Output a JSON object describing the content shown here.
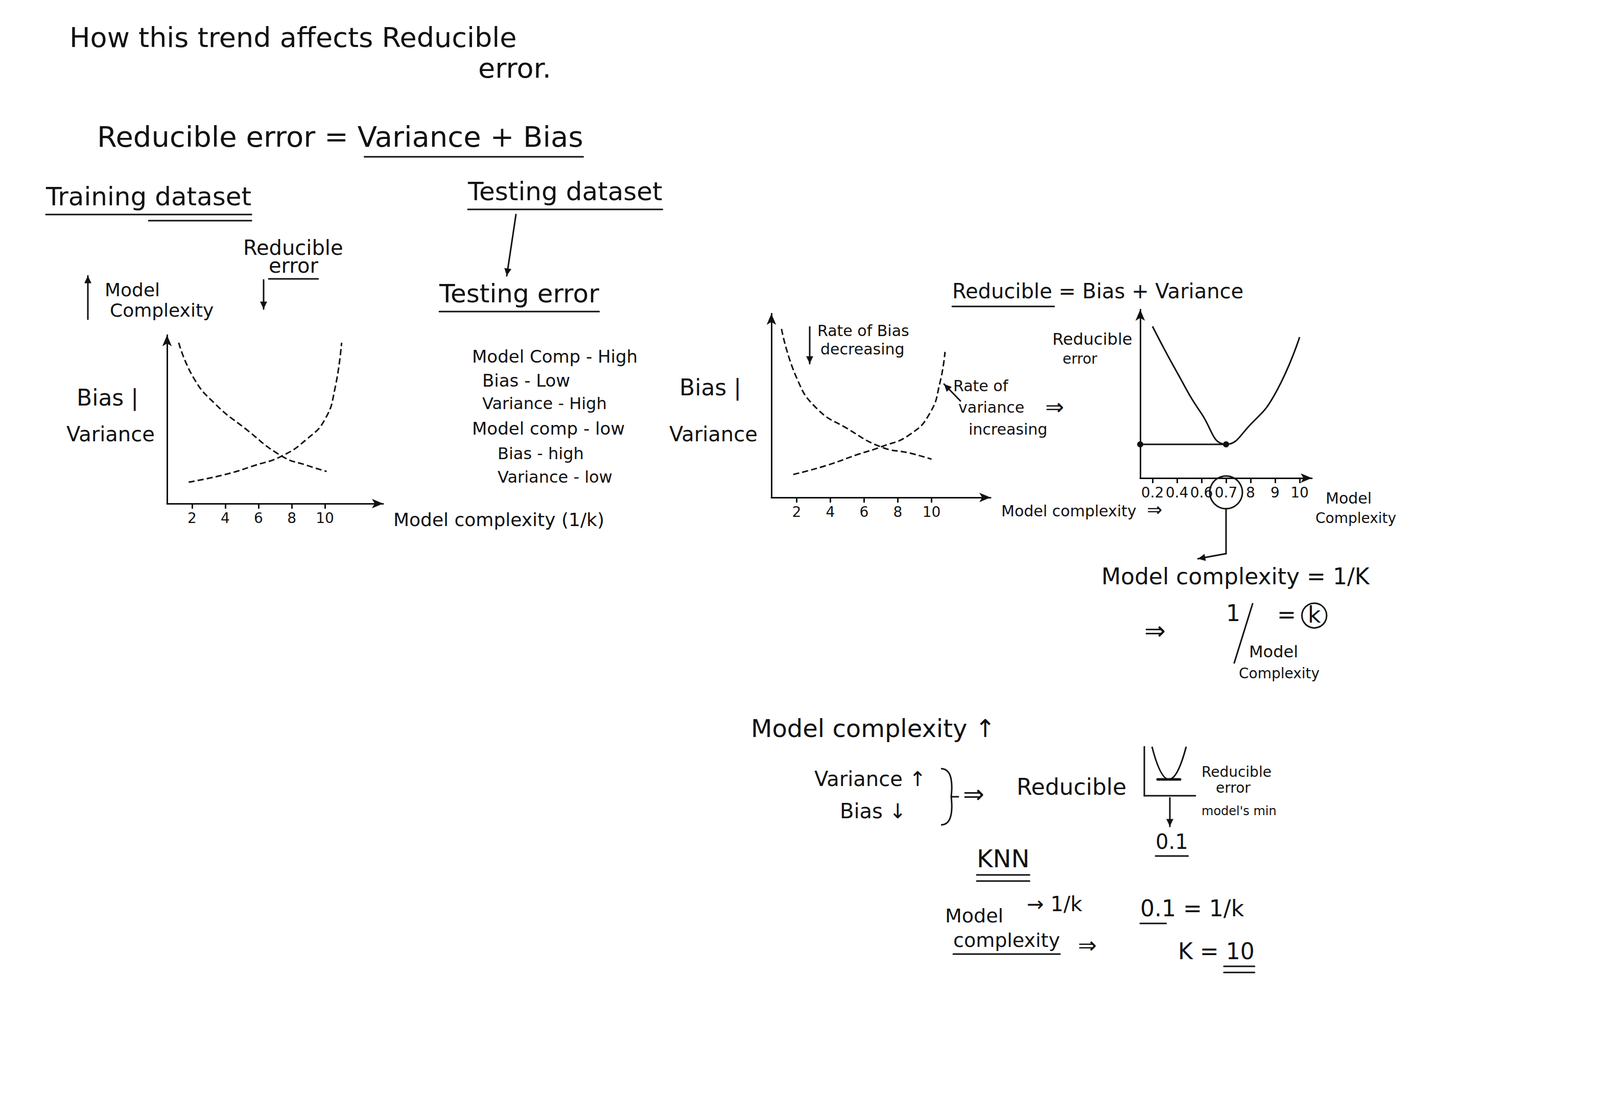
{
  "texts": {
    "heading_1": "How this trend affects Reducible",
    "heading_2": "error.",
    "formula": "Reducible error = Variance + Bias",
    "training": "Training dataset",
    "testing": "Testing dataset",
    "testing_error": "Testing error",
    "reducible_note_1": "Reducible",
    "reducible_note_2": "error",
    "complexity_note_1": "Model",
    "complexity_note_2": "Complexity",
    "test_1": "Model Comp - High",
    "test_2": "Bias - Low",
    "test_3": "Variance - High",
    "test_4": "Model comp - low",
    "test_5": "Bias - high",
    "test_6": "Variance - low",
    "rate_bias_1": "Rate of Bias",
    "rate_bias_2": "decreasing",
    "rate_var_1": "Rate of",
    "rate_var_2": "variance",
    "rate_var_3": "increasing",
    "rate_var_arrow": "⇒",
    "axis_arrow": "⇒",
    "reducible_eq": "Reducible = Bias + Variance",
    "mc_eq": "Model complexity = 1/K",
    "inv_arrow": "⇒",
    "inv_num": "1",
    "inv_den_1": "Model",
    "inv_den_2": "Complexity",
    "inv_eq": "=",
    "inv_k": "k",
    "trend": "Model complexity ↑",
    "trend_var": "Variance ↑",
    "trend_bias": "Bias ↓",
    "trend_arrow": "⇒",
    "trend_result": "Reducible",
    "sketch_1": "Reducible",
    "sketch_2": "error",
    "sketch_3": "model's min",
    "sketch_value": "0.1",
    "knn": "KNN",
    "knn_mc_1": "Model",
    "knn_mc_2": "complexity",
    "knn_map": "→ 1/k",
    "knn_arrow": "⇒",
    "knn_eq": "0.1 = 1/k",
    "knn_k": "K = 10"
  },
  "chart_data": [
    {
      "type": "line",
      "xlabel": "Model complexity (1/k)",
      "ylabel": [
        "Bias |",
        "Variance"
      ],
      "xlim": [
        0.5,
        13.5
      ],
      "xticks": [
        2,
        4,
        6,
        8,
        10
      ],
      "ylim": [
        0,
        11
      ],
      "tick_labels": "x",
      "grid": false,
      "series": [
        {
          "x": [
            1.2,
            2.1,
            3.4,
            5.2,
            7.4,
            8.9,
            10.1
          ],
          "values": [
            10.5,
            8.2,
            6.5,
            4.9,
            3.1,
            2.5,
            2.1
          ],
          "line_style": "dashed",
          "marker": "none",
          "color": "#111111"
        },
        {
          "x": [
            1.8,
            4.0,
            5.8,
            7.4,
            8.9,
            10.0,
            10.6,
            11.0
          ],
          "values": [
            1.4,
            1.9,
            2.5,
            3.1,
            4.2,
            5.5,
            7.5,
            10.5
          ],
          "line_style": "dashed",
          "marker": "none",
          "color": "#111111"
        }
      ]
    },
    {
      "type": "line",
      "xlabel": "Model complexity",
      "ylabel": [
        "Bias |",
        "Variance"
      ],
      "xlim": [
        0.5,
        13.5
      ],
      "xticks": [
        2,
        4,
        6,
        8,
        10
      ],
      "ylim": [
        0,
        12
      ],
      "tick_labels": "x",
      "grid": false,
      "series": [
        {
          "x": [
            1.1,
            2.0,
            3.2,
            5.0,
            7.0,
            8.7,
            10.0
          ],
          "values": [
            11.0,
            7.8,
            5.8,
            4.5,
            3.3,
            2.9,
            2.5
          ],
          "line_style": "dashed",
          "marker": "none",
          "color": "#111111"
        },
        {
          "x": [
            1.8,
            3.8,
            5.6,
            7.0,
            8.7,
            9.9,
            10.5,
            10.8
          ],
          "values": [
            1.5,
            2.1,
            2.8,
            3.3,
            4.1,
            5.5,
            7.5,
            9.5
          ],
          "line_style": "dashed",
          "marker": "none",
          "color": "#111111"
        }
      ]
    },
    {
      "type": "line",
      "xlabel": [
        "Model",
        "Complexity"
      ],
      "ylabel": [
        "Reducible",
        "error"
      ],
      "categories": [
        "0.2",
        "0.4",
        "0.6",
        "0.7",
        "8",
        "9",
        "10"
      ],
      "values": [
        9.9,
        6.9,
        4.2,
        2.2,
        3.5,
        5.5,
        9.2
      ],
      "ylim": [
        0,
        11
      ],
      "tick_labels": "x",
      "grid": false,
      "line_style": "solid",
      "marker": "none",
      "color": "#111111"
    }
  ]
}
